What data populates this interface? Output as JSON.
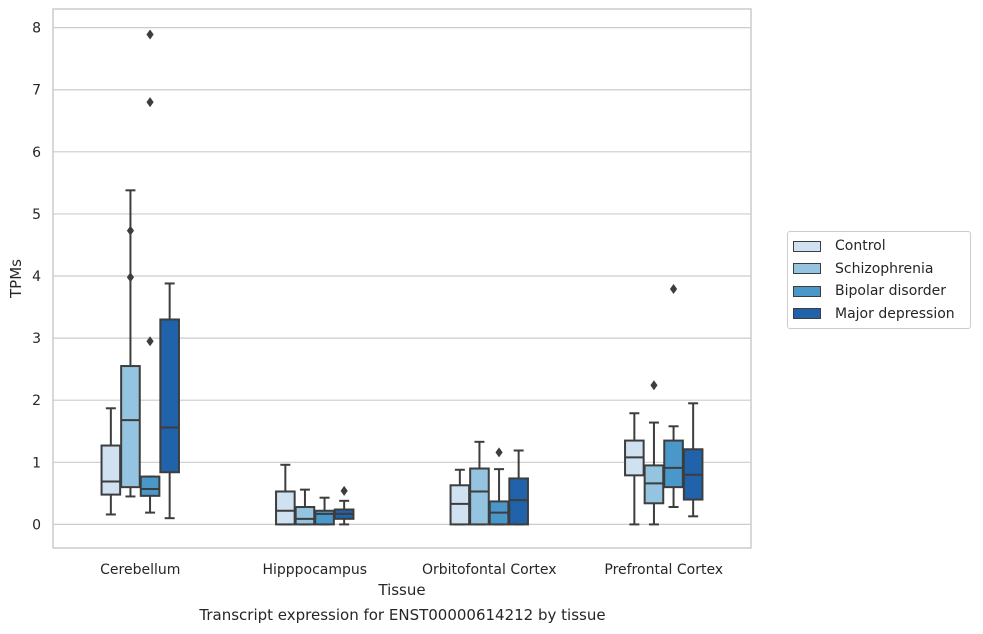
{
  "caption": "Transcript expression for ENST00000614212 by tissue",
  "chart_data": {
    "type": "boxplot",
    "xlabel": "Tissue",
    "ylabel": "TPMs",
    "ylim": [
      -0.38,
      8.3
    ],
    "yticks": [
      0,
      1,
      2,
      3,
      4,
      5,
      6,
      7,
      8
    ],
    "grid": "horizontal",
    "legend_position": "right",
    "categories": [
      "Cerebellum",
      "Hipppocampus",
      "Orbitofontal Cortex",
      "Prefrontal Cortex"
    ],
    "series": [
      {
        "name": "Control",
        "color": "#d0e1f2",
        "boxes": [
          {
            "q1": 0.48,
            "median": 0.69,
            "q3": 1.27,
            "whisker_low": 0.16,
            "whisker_high": 1.87,
            "outliers": []
          },
          {
            "q1": 0.0,
            "median": 0.22,
            "q3": 0.53,
            "whisker_low": 0.0,
            "whisker_high": 0.96,
            "outliers": []
          },
          {
            "q1": 0.0,
            "median": 0.33,
            "q3": 0.63,
            "whisker_low": 0.0,
            "whisker_high": 0.88,
            "outliers": []
          },
          {
            "q1": 0.79,
            "median": 1.08,
            "q3": 1.35,
            "whisker_low": 0.0,
            "whisker_high": 1.79,
            "outliers": []
          }
        ]
      },
      {
        "name": "Schizophrenia",
        "color": "#94c4df",
        "boxes": [
          {
            "q1": 0.6,
            "median": 1.68,
            "q3": 2.55,
            "whisker_low": 0.45,
            "whisker_high": 5.38,
            "outliers": [
              4.73,
              3.98
            ]
          },
          {
            "q1": 0.0,
            "median": 0.09,
            "q3": 0.28,
            "whisker_low": 0.0,
            "whisker_high": 0.56,
            "outliers": []
          },
          {
            "q1": 0.0,
            "median": 0.53,
            "q3": 0.9,
            "whisker_low": 0.0,
            "whisker_high": 1.33,
            "outliers": []
          },
          {
            "q1": 0.34,
            "median": 0.66,
            "q3": 0.95,
            "whisker_low": 0.0,
            "whisker_high": 1.64,
            "outliers": [
              2.24
            ]
          }
        ]
      },
      {
        "name": "Bipolar disorder",
        "color": "#4a98c9",
        "boxes": [
          {
            "q1": 0.46,
            "median": 0.57,
            "q3": 0.77,
            "whisker_low": 0.19,
            "whisker_high": 0.77,
            "outliers": [
              2.95,
              6.8,
              7.89
            ]
          },
          {
            "q1": 0.0,
            "median": 0.17,
            "q3": 0.22,
            "whisker_low": 0.0,
            "whisker_high": 0.43,
            "outliers": []
          },
          {
            "q1": 0.0,
            "median": 0.19,
            "q3": 0.37,
            "whisker_low": 0.0,
            "whisker_high": 0.89,
            "outliers": [
              1.16
            ]
          },
          {
            "q1": 0.6,
            "median": 0.91,
            "q3": 1.35,
            "whisker_low": 0.28,
            "whisker_high": 1.58,
            "outliers": [
              3.79
            ]
          }
        ]
      },
      {
        "name": "Major depression",
        "color": "#2163aa",
        "boxes": [
          {
            "q1": 0.84,
            "median": 1.56,
            "q3": 3.3,
            "whisker_low": 0.1,
            "whisker_high": 3.88,
            "outliers": []
          },
          {
            "q1": 0.09,
            "median": 0.17,
            "q3": 0.24,
            "whisker_low": 0.0,
            "whisker_high": 0.38,
            "outliers": [
              0.54
            ]
          },
          {
            "q1": 0.0,
            "median": 0.39,
            "q3": 0.74,
            "whisker_low": 0.0,
            "whisker_high": 1.19,
            "outliers": []
          },
          {
            "q1": 0.4,
            "median": 0.8,
            "q3": 1.21,
            "whisker_low": 0.13,
            "whisker_high": 1.95,
            "outliers": []
          }
        ]
      }
    ]
  }
}
